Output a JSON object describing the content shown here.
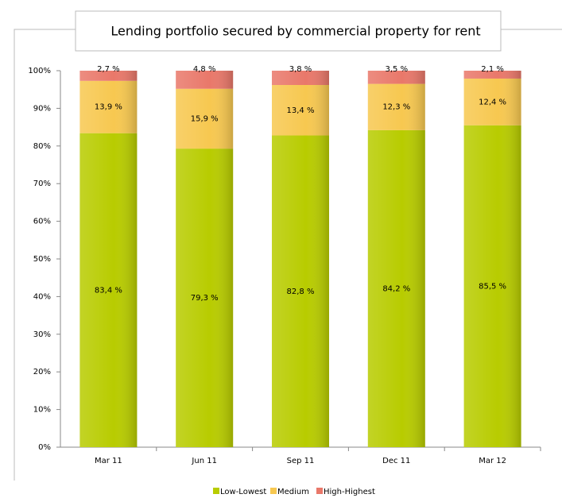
{
  "chart_data": {
    "type": "stacked-bar",
    "title": "Lending portfolio secured by commercial property for rent",
    "categories": [
      "Mar 11",
      "Jun 11",
      "Sep 11",
      "Dec 11",
      "Mar 12"
    ],
    "series": [
      {
        "name": "Low-Lowest",
        "color": "#b8cc00",
        "values": [
          83.4,
          79.3,
          82.8,
          84.2,
          85.5
        ],
        "value_labels": [
          "83,4 %",
          "79,3 %",
          "82,8 %",
          "84,2 %",
          "85,5 %"
        ]
      },
      {
        "name": "Medium",
        "color": "#f7c850",
        "values": [
          13.9,
          15.9,
          13.4,
          12.3,
          12.4
        ],
        "value_labels": [
          "13,9 %",
          "15,9 %",
          "13,4 %",
          "12,3 %",
          "12,4 %"
        ]
      },
      {
        "name": "High-Highest",
        "color": "#e9786a",
        "values": [
          2.7,
          4.8,
          3.8,
          3.5,
          2.1
        ],
        "value_labels": [
          "2,7 %",
          "4,8 %",
          "3,8 %",
          "3,5 %",
          "2,1 %"
        ]
      }
    ],
    "ylim": [
      0,
      100
    ],
    "yticks": [
      {
        "value": 0,
        "label": "0%"
      },
      {
        "value": 10,
        "label": "10%"
      },
      {
        "value": 20,
        "label": "20%"
      },
      {
        "value": 30,
        "label": "30%"
      },
      {
        "value": 40,
        "label": "40%"
      },
      {
        "value": 50,
        "label": "50%"
      },
      {
        "value": 60,
        "label": "60%"
      },
      {
        "value": 70,
        "label": "70%"
      },
      {
        "value": 80,
        "label": "80%"
      },
      {
        "value": 90,
        "label": "90%"
      },
      {
        "value": 100,
        "label": "100%"
      }
    ],
    "legend": "bottom"
  }
}
